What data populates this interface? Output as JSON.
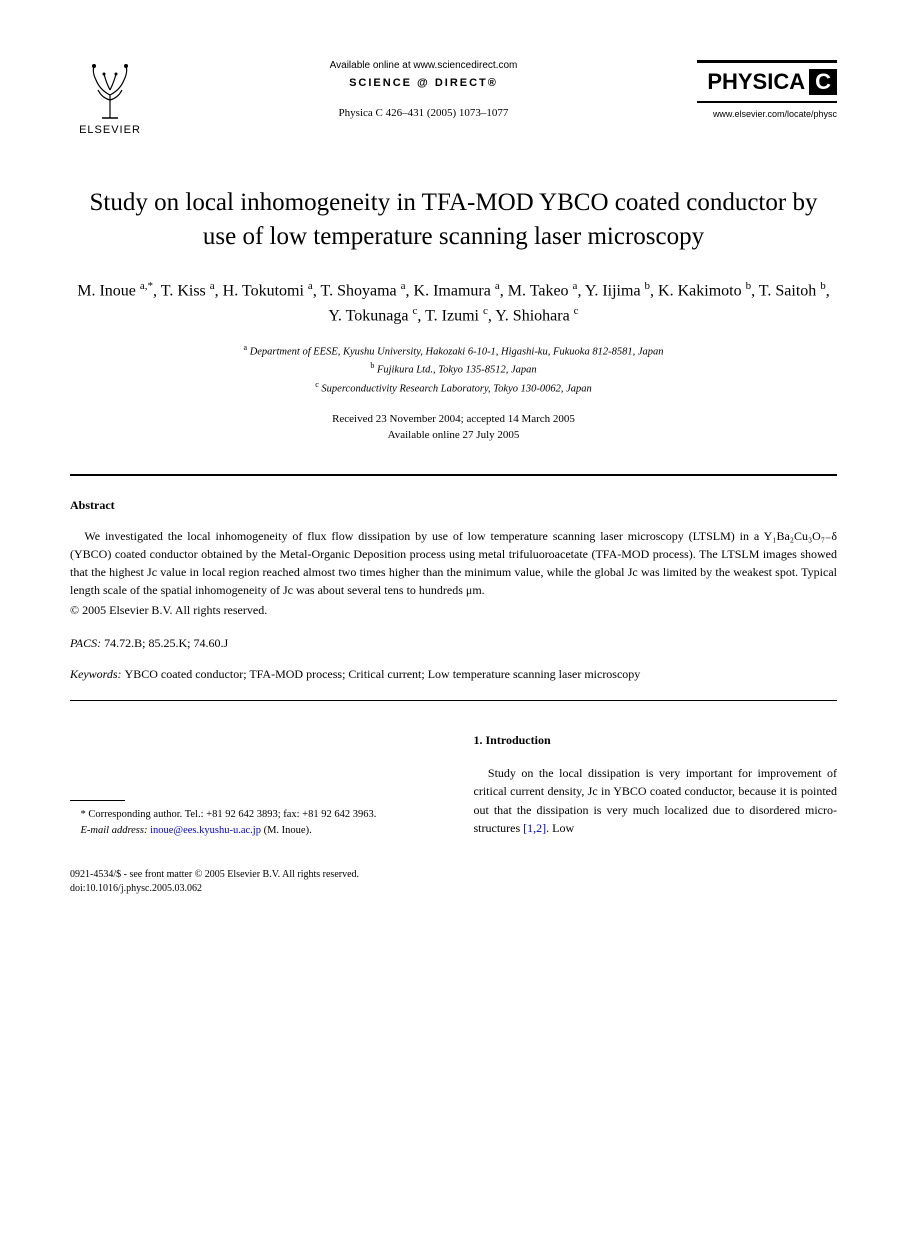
{
  "header": {
    "publisher_name": "ELSEVIER",
    "available_online": "Available online at www.sciencedirect.com",
    "science_direct": "SCIENCE @ DIRECT®",
    "citation": "Physica C 426–431 (2005) 1073–1077",
    "journal_name": "PHYSICA",
    "journal_letter": "C",
    "journal_url": "www.elsevier.com/locate/physc"
  },
  "title": "Study on local inhomogeneity in TFA-MOD YBCO coated conductor by use of low temperature scanning laser microscopy",
  "authors_html": "M. Inoue <sup>a,*</sup>, T. Kiss <sup>a</sup>, H. Tokutomi <sup>a</sup>, T. Shoyama <sup>a</sup>, K. Imamura <sup>a</sup>, M. Takeo <sup>a</sup>, Y. Iijima <sup>b</sup>, K. Kakimoto <sup>b</sup>, T. Saitoh <sup>b</sup>, Y. Tokunaga <sup>c</sup>, T. Izumi <sup>c</sup>, Y. Shiohara <sup>c</sup>",
  "affiliations": {
    "a": "Department of EESE, Kyushu University, Hakozaki 6-10-1, Higashi-ku, Fukuoka 812-8581, Japan",
    "b": "Fujikura Ltd., Tokyo 135-8512, Japan",
    "c": "Superconductivity Research Laboratory, Tokyo 130-0062, Japan"
  },
  "dates": {
    "received": "Received 23 November 2004; accepted 14 March 2005",
    "online": "Available online 27 July 2005"
  },
  "abstract": {
    "label": "Abstract",
    "text": "We investigated the local inhomogeneity of flux flow dissipation by use of low temperature scanning laser microscopy (LTSLM) in a Y₁Ba₂Cu₃O₇₋δ (YBCO) coated conductor obtained by the Metal-Organic Deposition process using metal trifuluoroacetate (TFA-MOD process). The LTSLM images showed that the highest Jc value in local region reached almost two times higher than the minimum value, while the global Jc was limited by the weakest spot. Typical length scale of the spatial inhomogeneity of Jc was about several tens to hundreds μm.",
    "copyright": "© 2005 Elsevier B.V. All rights reserved."
  },
  "pacs": {
    "label": "PACS:",
    "codes": "74.72.B; 85.25.K; 74.60.J"
  },
  "keywords": {
    "label": "Keywords:",
    "list": "YBCO coated conductor; TFA-MOD process; Critical current; Low temperature scanning laser microscopy"
  },
  "footnote": {
    "corresponding": "* Corresponding author. Tel.: +81 92 642 3893; fax: +81 92 642 3963.",
    "email_label": "E-mail address:",
    "email": "inoue@ees.kyushu-u.ac.jp",
    "email_person": "(M. Inoue)."
  },
  "introduction": {
    "heading": "1. Introduction",
    "text_part1": "Study on the local dissipation is very important for improvement of critical current density, Jc in YBCO coated conductor, because it is pointed out that the dissipation is very much localized due to disordered micro-structures ",
    "ref": "[1,2]",
    "text_part2": ". Low"
  },
  "bottom": {
    "issn": "0921-4534/$ - see front matter © 2005 Elsevier B.V. All rights reserved.",
    "doi": "doi:10.1016/j.physc.2005.03.062"
  }
}
